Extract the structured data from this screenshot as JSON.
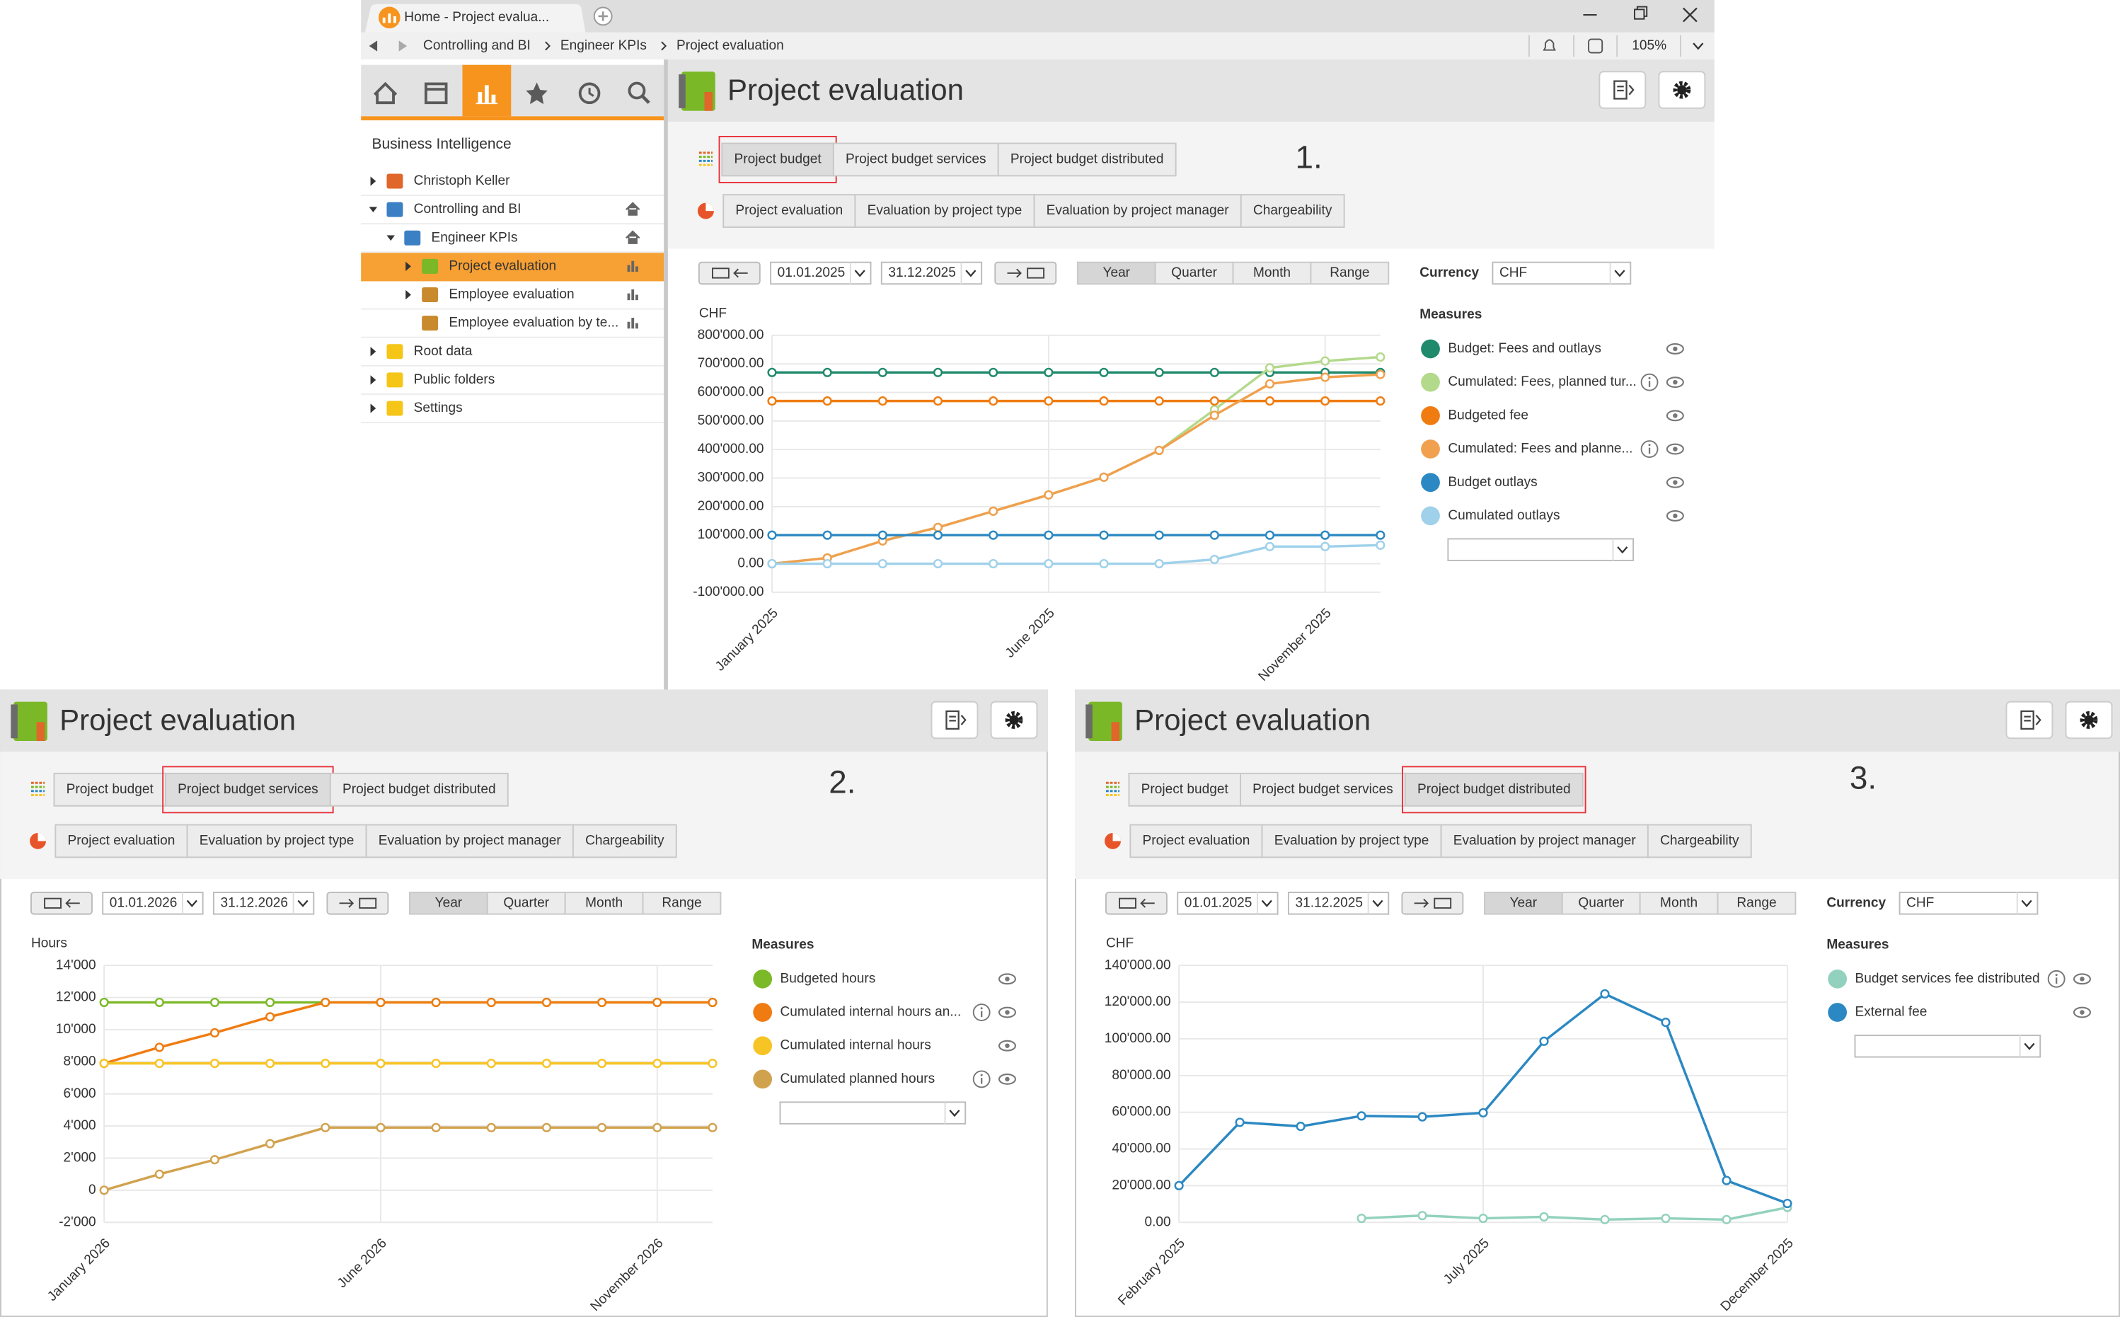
{
  "window": {
    "tab_title": "Home - Project evalua...",
    "breadcrumb": [
      "Controlling and BI",
      "Engineer KPIs",
      "Project evaluation"
    ],
    "zoom": "105%"
  },
  "sidebar": {
    "title": "Business Intelligence",
    "items": [
      {
        "label": "Christoph Keller",
        "collapsed": true,
        "icon_color": "#e0662a"
      },
      {
        "label": "Controlling and BI",
        "badge": "home",
        "icon_color": "#3b7fc4",
        "children": [
          {
            "label": "Engineer KPIs",
            "badge": "home",
            "icon_color": "#3b7fc4",
            "children": [
              {
                "label": "Project evaluation",
                "collapsed": true,
                "selected": true,
                "badge": "chart",
                "icon_color": "#7ab827"
              },
              {
                "label": "Employee evaluation",
                "collapsed": true,
                "badge": "chart",
                "icon_color": "#c98a2e"
              },
              {
                "label": "Employee evaluation by te...",
                "badge": "chart",
                "icon_color": "#c98a2e"
              }
            ]
          }
        ]
      },
      {
        "label": "Root data",
        "collapsed": true,
        "icon_color": "#f5c518"
      },
      {
        "label": "Public folders",
        "collapsed": true,
        "icon_color": "#f5c518"
      },
      {
        "label": "Settings",
        "collapsed": true,
        "icon_color": "#f5c518"
      }
    ]
  },
  "tabs": [
    "Project budget",
    "Project budget services",
    "Project budget distributed"
  ],
  "reports": [
    "Project evaluation",
    "Evaluation by project type",
    "Evaluation by project manager",
    "Chargeability"
  ],
  "periods": [
    "Year",
    "Quarter",
    "Month",
    "Range"
  ],
  "currency_label": "Currency",
  "measures_label": "Measures",
  "panels": [
    {
      "title": "Project evaluation",
      "step": "1.",
      "selected_tab": 0,
      "date_from": "01.01.2025",
      "date_to": "31.12.2025",
      "selected_period": 0,
      "currency": "CHF"
    },
    {
      "title": "Project evaluation",
      "step": "2.",
      "selected_tab": 1,
      "date_from": "01.01.2026",
      "date_to": "31.12.2026",
      "selected_period": 0
    },
    {
      "title": "Project evaluation",
      "step": "3.",
      "selected_tab": 2,
      "date_from": "01.01.2025",
      "date_to": "31.12.2025",
      "selected_period": 0,
      "currency": "CHF"
    }
  ],
  "chart_data": [
    {
      "type": "line",
      "y_unit": "CHF",
      "categories": [
        "January 2025",
        null,
        null,
        null,
        null,
        "June 2025",
        null,
        null,
        null,
        null,
        "November 2025",
        null
      ],
      "ylim": [
        -100000,
        800000
      ],
      "yticks": [
        {
          "value": 800000,
          "label": "800'000.00"
        },
        {
          "value": 700000,
          "label": "700'000.00"
        },
        {
          "value": 600000,
          "label": "600'000.00"
        },
        {
          "value": 500000,
          "label": "500'000.00"
        },
        {
          "value": 400000,
          "label": "400'000.00"
        },
        {
          "value": 300000,
          "label": "300'000.00"
        },
        {
          "value": 200000,
          "label": "200'000.00"
        },
        {
          "value": 100000,
          "label": "100'000.00"
        },
        {
          "value": 0,
          "label": "0.00"
        },
        {
          "value": -100000,
          "label": "-100'000.00"
        }
      ],
      "grid": true,
      "series": [
        {
          "name": "Budget: Fees and outlays",
          "color": "#1f8a6c",
          "values": [
            670000,
            670000,
            670000,
            670000,
            670000,
            670000,
            670000,
            670000,
            670000,
            670000,
            670000,
            670000
          ]
        },
        {
          "name": "Cumulated: Fees, planned tur...",
          "color": "#b3d98b",
          "info": true,
          "values": [
            0,
            20000,
            80000,
            127000,
            184000,
            241000,
            303000,
            397000,
            540000,
            686000,
            710000,
            724000
          ]
        },
        {
          "name": "Budgeted fee",
          "color": "#f07c11",
          "values": [
            570000,
            570000,
            570000,
            570000,
            570000,
            570000,
            570000,
            570000,
            570000,
            570000,
            570000,
            570000
          ]
        },
        {
          "name": "Cumulated: Fees and planne...",
          "color": "#f0a04e",
          "info": true,
          "values": [
            0,
            20000,
            80000,
            127000,
            184000,
            241000,
            303000,
            397000,
            520000,
            630000,
            653000,
            663000
          ]
        },
        {
          "name": "Budget outlays",
          "color": "#2b88c2",
          "values": [
            100000,
            100000,
            100000,
            100000,
            100000,
            100000,
            100000,
            100000,
            100000,
            100000,
            100000,
            100000
          ]
        },
        {
          "name": "Cumulated outlays",
          "color": "#9fd1ea",
          "values": [
            0,
            0,
            0,
            0,
            0,
            0,
            0,
            0,
            15000,
            60000,
            60000,
            65000
          ]
        }
      ]
    },
    {
      "type": "line",
      "y_unit": "Hours",
      "categories": [
        "January 2026",
        null,
        null,
        null,
        null,
        "June 2026",
        null,
        null,
        null,
        null,
        "November 2026",
        null
      ],
      "ylim": [
        -2000,
        14000
      ],
      "yticks": [
        {
          "value": 14000,
          "label": "14'000"
        },
        {
          "value": 12000,
          "label": "12'000"
        },
        {
          "value": 10000,
          "label": "10'000"
        },
        {
          "value": 8000,
          "label": "8'000"
        },
        {
          "value": 6000,
          "label": "6'000"
        },
        {
          "value": 4000,
          "label": "4'000"
        },
        {
          "value": 2000,
          "label": "2'000"
        },
        0,
        {
          "value": -2000,
          "label": "-2'000"
        }
      ],
      "grid": true,
      "series": [
        {
          "name": "Budgeted hours",
          "color": "#7cb928",
          "values": [
            11700,
            11700,
            11700,
            11700,
            11700,
            11700,
            11700,
            11700,
            11700,
            11700,
            11700,
            11700
          ]
        },
        {
          "name": "Cumulated internal hours an...",
          "color": "#f07c11",
          "info": true,
          "values": [
            7900,
            8900,
            9800,
            10800,
            11700,
            11700,
            11700,
            11700,
            11700,
            11700,
            11700,
            11700
          ]
        },
        {
          "name": "Cumulated internal hours",
          "color": "#f7c425",
          "values": [
            7900,
            7900,
            7900,
            7900,
            7900,
            7900,
            7900,
            7900,
            7900,
            7900,
            7900,
            7900
          ]
        },
        {
          "name": "Cumulated planned hours",
          "color": "#d1a24e",
          "info": true,
          "values": [
            0,
            1000,
            1900,
            2900,
            3900,
            3900,
            3900,
            3900,
            3900,
            3900,
            3900,
            3900
          ]
        }
      ]
    },
    {
      "type": "line",
      "y_unit": "CHF",
      "categories": [
        "February 2025",
        null,
        null,
        null,
        null,
        "July 2025",
        null,
        null,
        null,
        null,
        "December 2025"
      ],
      "ylim": [
        0,
        140000
      ],
      "yticks": [
        {
          "value": 140000,
          "label": "140'000.00"
        },
        {
          "value": 120000,
          "label": "120'000.00"
        },
        {
          "value": 100000,
          "label": "100'000.00"
        },
        {
          "value": 80000,
          "label": "80'000.00"
        },
        {
          "value": 60000,
          "label": "60'000.00"
        },
        {
          "value": 40000,
          "label": "40'000.00"
        },
        {
          "value": 20000,
          "label": "20'000.00"
        },
        {
          "value": 0,
          "label": "0.00"
        }
      ],
      "grid": true,
      "series": [
        {
          "name": "Budget services fee distributed",
          "color": "#92d1bd",
          "info": true,
          "values": [
            null,
            null,
            null,
            2200,
            3700,
            2200,
            3000,
            1500,
            2200,
            1500,
            8100
          ]
        },
        {
          "name": "External fee",
          "color": "#2b88c2",
          "values": [
            20000,
            54500,
            52300,
            58000,
            57500,
            59700,
            98700,
            124500,
            109000,
            22800,
            10300
          ]
        }
      ]
    }
  ]
}
